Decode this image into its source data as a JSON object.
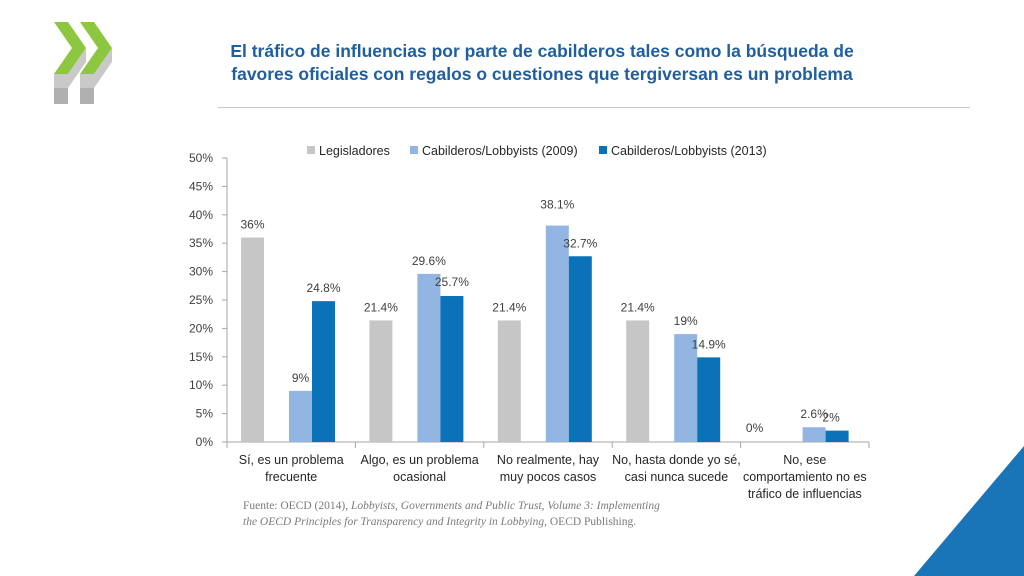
{
  "header": {
    "title_line1": "El tráfico de influencias por parte de cabilderos tales como la búsqueda de",
    "title_line2": "favores oficiales con regalos o cuestiones que tergiversan  es un problema",
    "logo_icon": "oecd-chevrons-icon"
  },
  "source": {
    "prefix": "Fuente: OECD (2014), ",
    "title_italic_1": "Lobbyists, Governments and Public Trust, Volume 3: Implementing",
    "title_italic_2": "the OECD Principles for Transparency and Integrity in Lobbying",
    "suffix": ", OECD Publishing."
  },
  "colors": {
    "title": "#1f5fa0",
    "logo": "#8dc63f",
    "corner": "#1a74b8"
  },
  "chart_data": {
    "type": "bar",
    "title": "",
    "xlabel": "",
    "ylabel": "",
    "ylim": [
      0,
      50
    ],
    "yticks": [
      "0%",
      "5%",
      "10%",
      "15%",
      "20%",
      "25%",
      "30%",
      "35%",
      "40%",
      "45%",
      "50%"
    ],
    "categories": [
      [
        "Sí, es un problema",
        "frecuente"
      ],
      [
        "Algo, es un problema",
        "ocasional"
      ],
      [
        "No realmente, hay",
        "muy pocos casos"
      ],
      [
        "No, hasta donde yo sé,",
        "casi nunca sucede"
      ],
      [
        "No, ese",
        "comportamiento no es",
        "tráfico de influencias"
      ]
    ],
    "legend_position": "top",
    "series": [
      {
        "name": "Legisladores",
        "color": "#c6c6c6",
        "values": [
          36,
          21.4,
          21.4,
          21.4,
          0
        ],
        "labels": [
          "36%",
          "21.4%",
          "21.4%",
          "21.4%",
          "0%"
        ]
      },
      {
        "name": "Cabilderos/Lobbyists (2009)",
        "color": "#93b5e2",
        "values": [
          9,
          29.6,
          38.1,
          19,
          2.6
        ],
        "labels": [
          "9%",
          "29.6%",
          "38.1%",
          "19%",
          "2.6%"
        ]
      },
      {
        "name": "Cabilderos/Lobbyists (2013)",
        "color": "#0a72b8",
        "values": [
          24.8,
          25.7,
          32.7,
          14.9,
          2
        ],
        "labels": [
          "24.8%",
          "25.7%",
          "32.7%",
          "14.9%",
          "2%"
        ]
      }
    ]
  }
}
